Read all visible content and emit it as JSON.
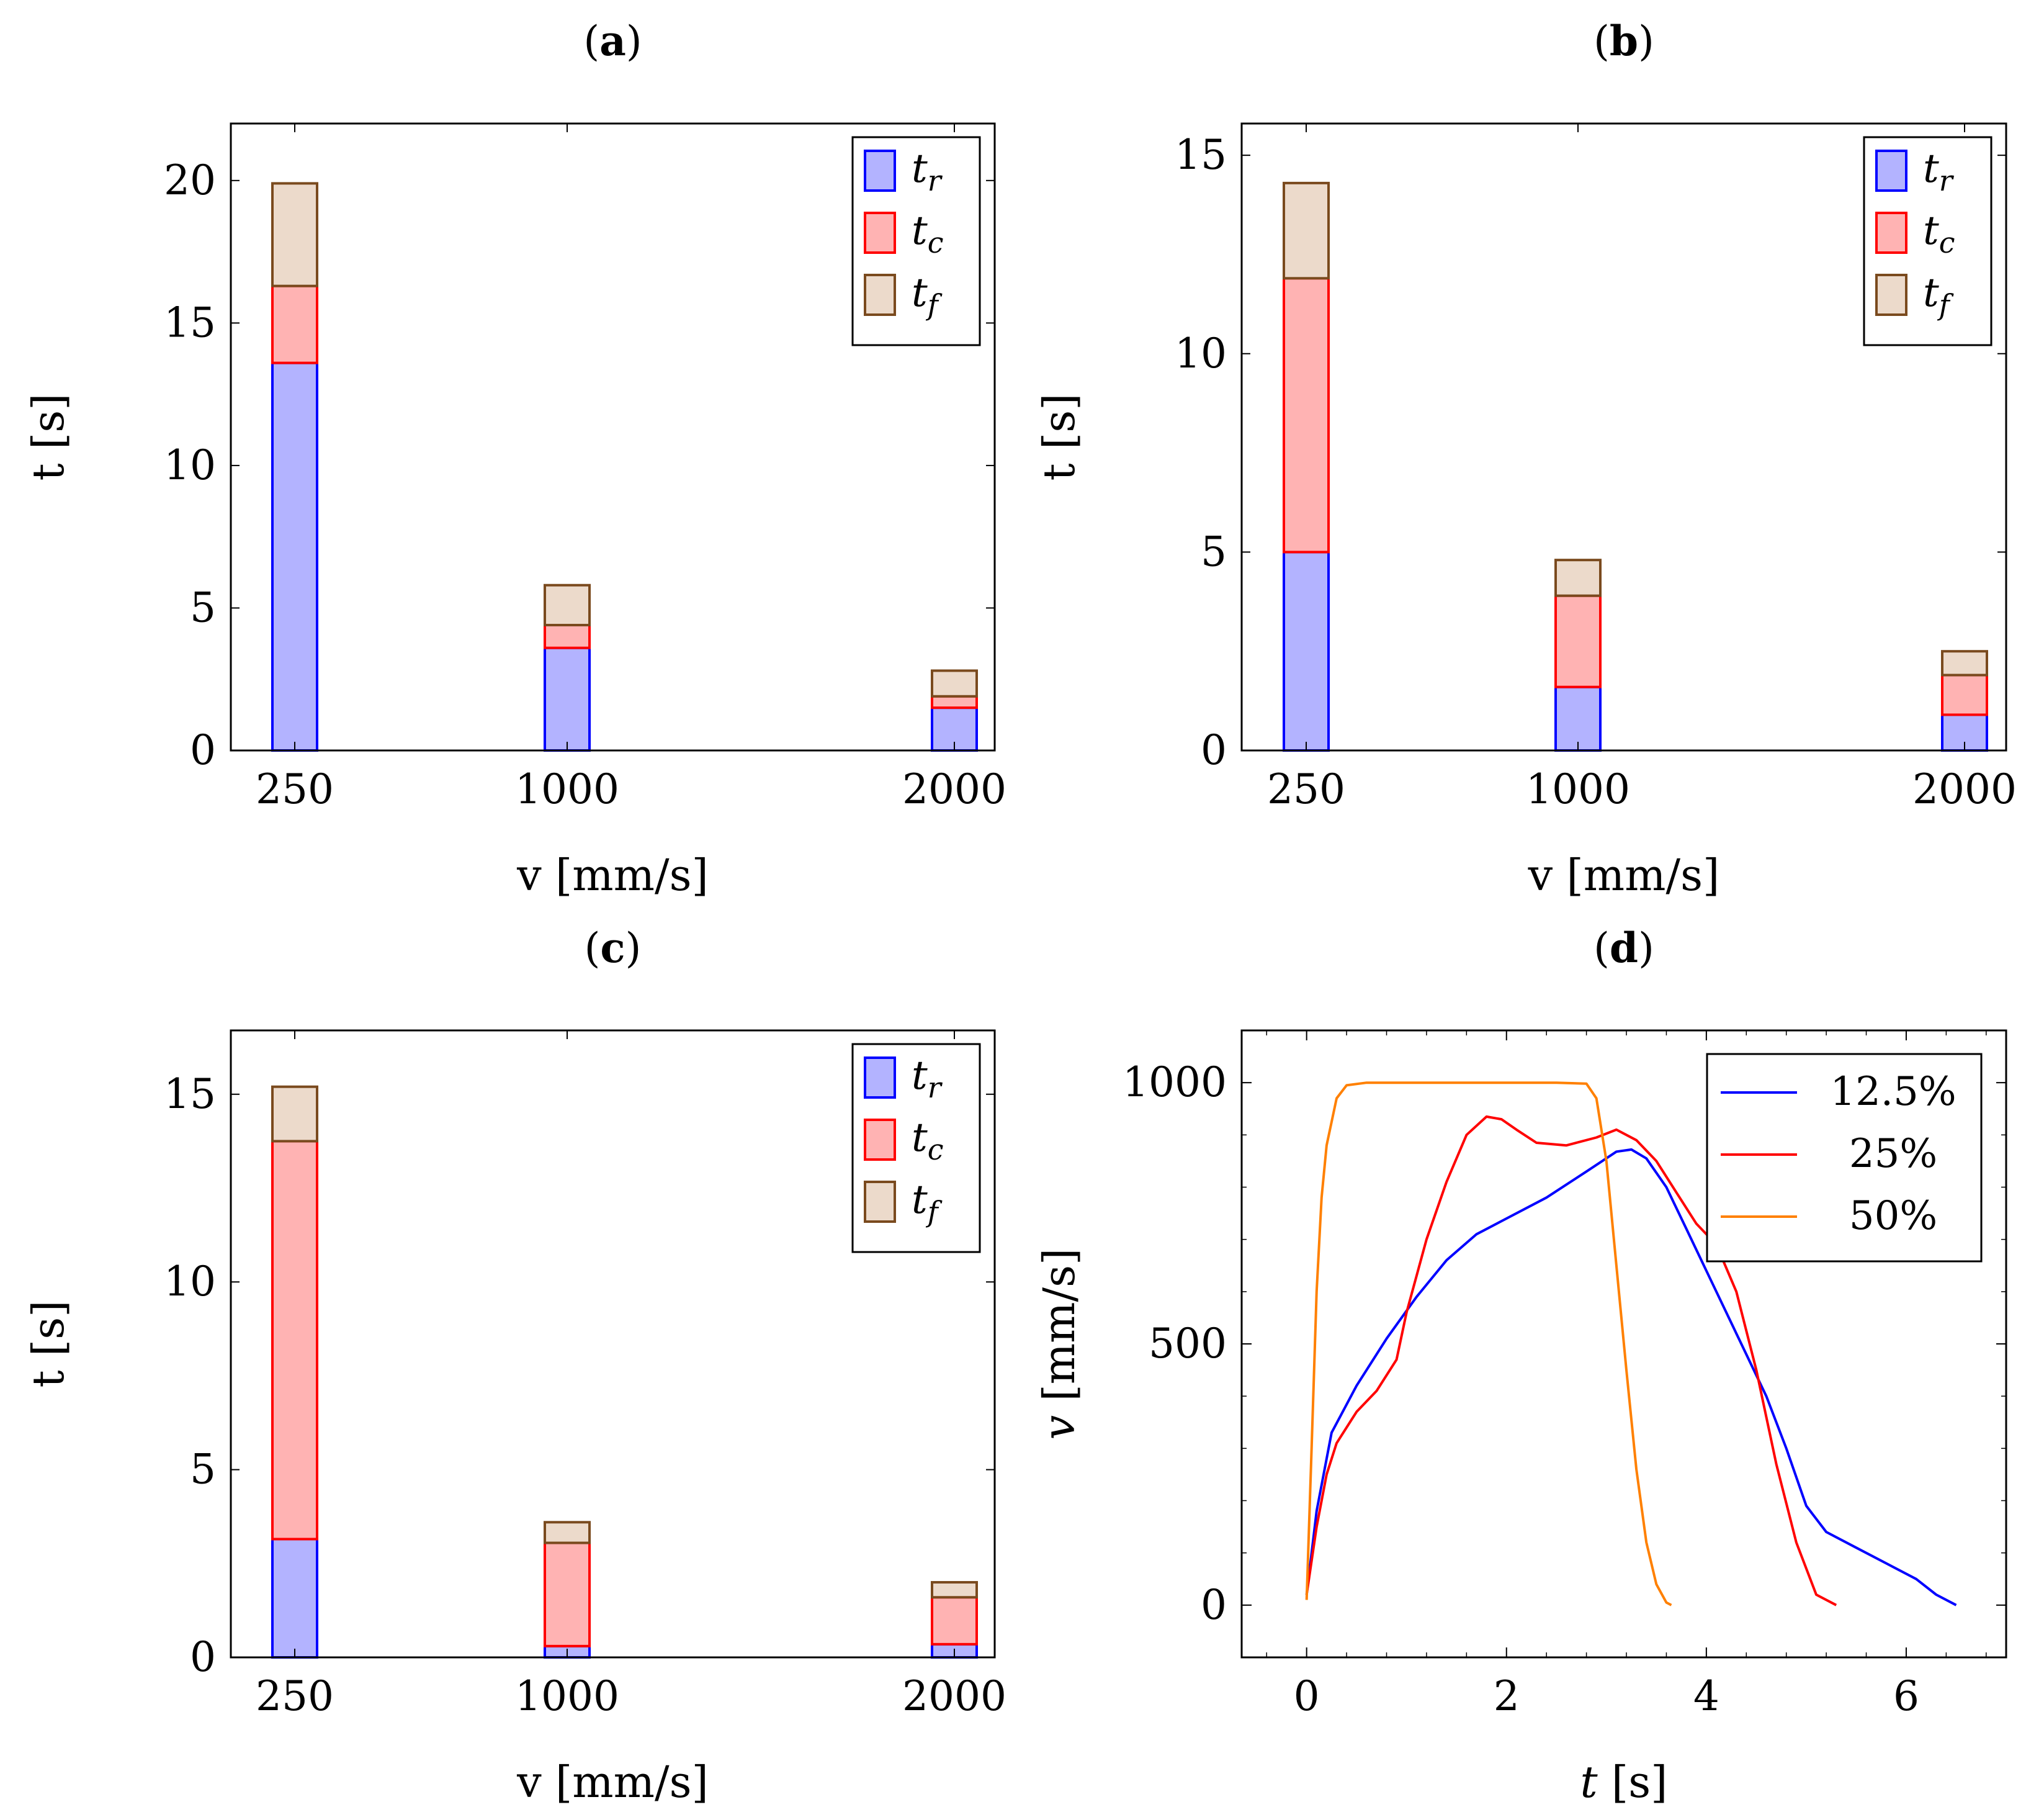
{
  "colors": {
    "tr_fill": "#b3b3ff",
    "tr_stroke": "#0000ff",
    "tc_fill": "#ffb3b3",
    "tc_stroke": "#ff0000",
    "tf_fill": "#ecdacb",
    "tf_stroke": "#7a4a1e",
    "line_12_5": "#0000ff",
    "line_25": "#ff0000",
    "line_50": "#ff8000"
  },
  "chart_data": [
    {
      "id": "a",
      "type": "bar",
      "stacked": true,
      "title": "(a)",
      "title_letter": "a",
      "xlabel": "v [mm/s]",
      "ylabel": "t [s]",
      "categories": [
        "250",
        "1000",
        "2000"
      ],
      "ylim": [
        0,
        22
      ],
      "yticks": [
        0,
        5,
        10,
        15,
        20
      ],
      "legend_position": "top-right",
      "series": [
        {
          "name": "t_r",
          "sym": "t",
          "sub": "r",
          "color_key": "tr",
          "values": [
            13.6,
            3.6,
            1.5
          ]
        },
        {
          "name": "t_c",
          "sym": "t",
          "sub": "c",
          "color_key": "tc",
          "values": [
            2.7,
            0.8,
            0.4
          ]
        },
        {
          "name": "t_f",
          "sym": "t",
          "sub": "f",
          "color_key": "tf",
          "values": [
            3.6,
            1.4,
            0.9
          ]
        }
      ]
    },
    {
      "id": "b",
      "type": "bar",
      "stacked": true,
      "title": "(b)",
      "title_letter": "b",
      "xlabel": "v [mm/s]",
      "ylabel": "t [s]",
      "categories": [
        "250",
        "1000",
        "2000"
      ],
      "ylim": [
        0,
        15.8
      ],
      "yticks": [
        0,
        5,
        10,
        15
      ],
      "legend_position": "top-right",
      "series": [
        {
          "name": "t_r",
          "sym": "t",
          "sub": "r",
          "color_key": "tr",
          "values": [
            5.0,
            1.6,
            0.9
          ]
        },
        {
          "name": "t_c",
          "sym": "t",
          "sub": "c",
          "color_key": "tc",
          "values": [
            6.9,
            2.3,
            1.0
          ]
        },
        {
          "name": "t_f",
          "sym": "t",
          "sub": "f",
          "color_key": "tf",
          "values": [
            2.4,
            0.9,
            0.6
          ]
        }
      ]
    },
    {
      "id": "c",
      "type": "bar",
      "stacked": true,
      "title": "(c)",
      "title_letter": "c",
      "xlabel": "v [mm/s]",
      "ylabel": "t [s]",
      "categories": [
        "250",
        "1000",
        "2000"
      ],
      "ylim": [
        0,
        16.7
      ],
      "yticks": [
        0,
        5,
        10,
        15
      ],
      "legend_position": "top-right",
      "series": [
        {
          "name": "t_r",
          "sym": "t",
          "sub": "r",
          "color_key": "tr",
          "values": [
            3.15,
            0.3,
            0.35
          ]
        },
        {
          "name": "t_c",
          "sym": "t",
          "sub": "c",
          "color_key": "tc",
          "values": [
            10.6,
            2.75,
            1.25
          ]
        },
        {
          "name": "t_f",
          "sym": "t",
          "sub": "f",
          "color_key": "tf",
          "values": [
            1.45,
            0.55,
            0.4
          ]
        }
      ]
    },
    {
      "id": "d",
      "type": "line",
      "title": "(d)",
      "title_letter": "d",
      "xlabel_italic": "t",
      "xlabel_rest": " [s]",
      "ylabel_italic": "v",
      "ylabel_rest": " [mm/s]",
      "xlim": [
        -0.65,
        7.0
      ],
      "ylim": [
        -100,
        1100
      ],
      "xticks": [
        0,
        2,
        4,
        6
      ],
      "yticks": [
        0,
        500,
        1000
      ],
      "legend_position": "top-right",
      "series": [
        {
          "name": "12.5%",
          "color_key": "line_12_5",
          "x": [
            0.0,
            0.1,
            0.25,
            0.5,
            0.8,
            1.1,
            1.4,
            1.7,
            2.0,
            2.4,
            2.8,
            3.1,
            3.25,
            3.4,
            3.6,
            3.8,
            4.0,
            4.3,
            4.6,
            4.8,
            5.0,
            5.2,
            5.5,
            5.8,
            6.1,
            6.3,
            6.5
          ],
          "y": [
            20,
            180,
            330,
            420,
            510,
            590,
            660,
            710,
            740,
            780,
            830,
            868,
            872,
            855,
            800,
            720,
            640,
            520,
            400,
            300,
            190,
            140,
            110,
            80,
            50,
            20,
            0
          ]
        },
        {
          "name": "25%",
          "color_key": "line_25",
          "x": [
            0.0,
            0.1,
            0.2,
            0.3,
            0.5,
            0.7,
            0.9,
            1.0,
            1.2,
            1.4,
            1.6,
            1.8,
            1.95,
            2.1,
            2.3,
            2.6,
            2.9,
            3.1,
            3.3,
            3.5,
            3.7,
            3.9,
            4.1,
            4.3,
            4.5,
            4.7,
            4.9,
            5.1,
            5.3
          ],
          "y": [
            20,
            150,
            250,
            310,
            370,
            410,
            470,
            560,
            700,
            810,
            900,
            935,
            930,
            910,
            885,
            880,
            895,
            910,
            890,
            850,
            790,
            730,
            690,
            600,
            450,
            270,
            120,
            20,
            0
          ]
        },
        {
          "name": "50%",
          "color_key": "line_50",
          "x": [
            0.0,
            0.05,
            0.1,
            0.15,
            0.2,
            0.3,
            0.4,
            0.6,
            1.0,
            1.5,
            2.0,
            2.5,
            2.8,
            2.9,
            3.0,
            3.1,
            3.2,
            3.3,
            3.4,
            3.5,
            3.6,
            3.65
          ],
          "y": [
            10,
            300,
            600,
            780,
            880,
            970,
            995,
            1000,
            1000,
            1000,
            1000,
            1000,
            998,
            970,
            850,
            650,
            450,
            260,
            120,
            40,
            5,
            0
          ]
        }
      ]
    }
  ]
}
